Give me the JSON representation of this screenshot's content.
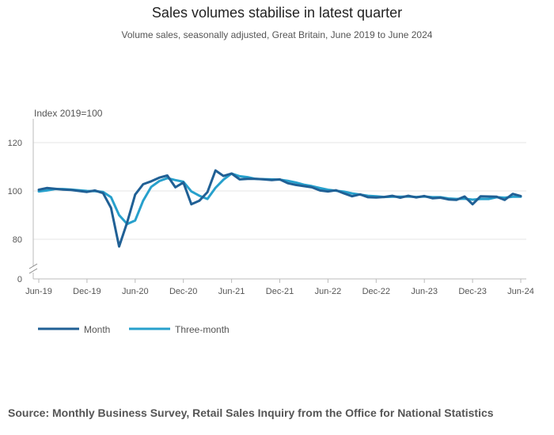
{
  "title": "Sales volumes stabilise in latest quarter",
  "subtitle": "Volume sales, seasonally adjusted, Great Britain, June 2019 to June 2024",
  "source": "Source: Monthly Business Survey, Retail Sales Inquiry from the Office for National Statistics",
  "colors": {
    "month": "#206095",
    "three_month": "#27A0CC",
    "grid": "#e6e6e6",
    "axis": "#bbbbbb"
  },
  "chart_data": {
    "type": "line",
    "ylabel": "Index 2019=100",
    "y_ticks": [
      0,
      80,
      100,
      120
    ],
    "y_axis_break": "between 0 and 80",
    "ylim": [
      75,
      130
    ],
    "x_ticks": [
      "Jun-19",
      "Dec-19",
      "Jun-20",
      "Dec-20",
      "Jun-21",
      "Dec-21",
      "Jun-22",
      "Dec-22",
      "Jun-23",
      "Dec-23",
      "Jun-24"
    ],
    "x_count": 61,
    "legend_position": "bottom-left",
    "series": [
      {
        "name": "Month",
        "values": [
          100.5,
          101.2,
          100.9,
          100.6,
          100.4,
          100.0,
          99.6,
          100.2,
          99.1,
          93.0,
          77.0,
          87.0,
          98.5,
          102.8,
          104.0,
          105.5,
          106.4,
          101.5,
          103.5,
          94.5,
          96.0,
          99.5,
          108.5,
          106.2,
          107.2,
          104.8,
          105.0,
          105.0,
          104.8,
          104.5,
          104.8,
          103.2,
          102.5,
          102.0,
          101.5,
          100.2,
          99.8,
          100.3,
          99.0,
          97.8,
          98.6,
          97.4,
          97.3,
          97.5,
          98.0,
          97.2,
          98.0,
          97.3,
          97.9,
          97.0,
          97.2,
          96.5,
          96.3,
          97.7,
          94.5,
          97.8,
          97.7,
          97.6,
          96.3,
          98.8,
          97.9
        ]
      },
      {
        "name": "Three-month",
        "values": [
          99.8,
          100.2,
          100.8,
          100.8,
          100.6,
          100.3,
          100.0,
          99.9,
          99.6,
          97.4,
          90.0,
          86.3,
          87.8,
          96.0,
          101.7,
          104.1,
          105.3,
          104.5,
          103.8,
          99.8,
          98.0,
          96.7,
          101.3,
          104.7,
          107.2,
          106.1,
          105.7,
          105.0,
          104.9,
          104.8,
          104.7,
          104.2,
          103.5,
          102.6,
          102.0,
          101.2,
          100.5,
          100.1,
          99.7,
          99.0,
          98.5,
          98.0,
          97.8,
          97.5,
          97.6,
          97.6,
          97.7,
          97.5,
          97.7,
          97.4,
          97.4,
          96.9,
          96.7,
          96.8,
          96.4,
          96.7,
          96.7,
          97.4,
          97.2,
          97.6,
          97.6
        ]
      }
    ]
  }
}
